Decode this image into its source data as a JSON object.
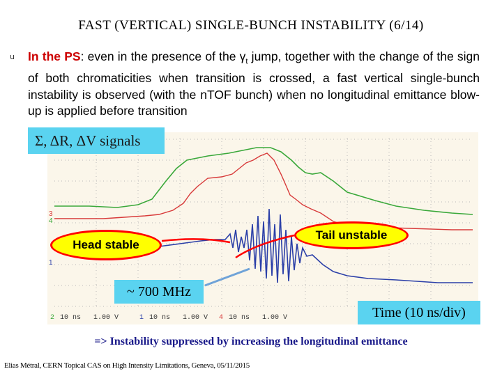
{
  "slide": {
    "title": "FAST (VERTICAL) SINGLE-BUNCH INSTABILITY (6/14)",
    "bullet_marker": "u",
    "paragraph": {
      "lead": "In the PS",
      "sep": ":",
      "body_1": " even in the presence of the γ",
      "subscript": "t",
      "body_2": " jump, together with the change of the sign of both chromaticities when transition is crossed, a fast vertical single-bunch instability is observed (with the nTOF bunch) when no longitudinal emittance blow-up is applied before transition"
    },
    "signals_label": "Σ, ΔR, ΔV signals",
    "head_label": "Head stable",
    "tail_label": "Tail unstable",
    "mhz_label": "~ 700 MHz",
    "time_label": "Time (10 ns/div)",
    "conclusion": "=> Instability suppressed by increasing the longitudinal emittance",
    "footer": "Elias Métral, CERN Topical CAS on High Intensity Limitations, Geneva, 05/11/2015"
  },
  "scope": {
    "channel_markers": [
      "3",
      "4",
      "1"
    ],
    "status_bar": [
      "2",
      "10 ns",
      "1.00 V",
      "1",
      "10 ns",
      "1.00 V",
      "4",
      "10 ns",
      "1.00 V"
    ],
    "colors": {
      "background": "#fbf6ea",
      "grid": "#b8b8b8",
      "trace_green": "#3aa83a",
      "trace_red": "#d83a3a",
      "trace_blue": "#2b3fa8"
    }
  }
}
